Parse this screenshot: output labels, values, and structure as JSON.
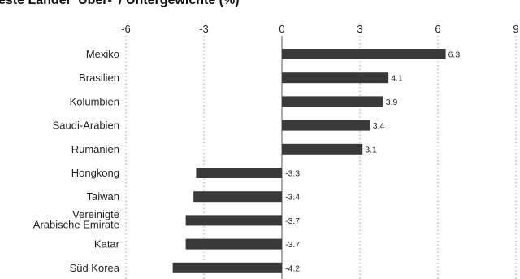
{
  "chart_data": {
    "type": "bar",
    "orientation": "horizontal",
    "title": "este Länder 'Über-' / Untergewichte (%)",
    "xlabel": "",
    "ylabel": "",
    "xlim": [
      -6,
      9
    ],
    "x_ticks": [
      "-6",
      "-3",
      "0",
      "3",
      "6",
      "9"
    ],
    "grid": "vertical dotted",
    "bar_color": "#3a3a3a",
    "categories": [
      "Mexiko",
      "Brasilien",
      "Kolumbien",
      "Saudi-Arabien",
      "Rumänien",
      "Hongkong",
      "Taiwan",
      "Vereinigte\nArabische Emirate",
      "Katar",
      "Süd Korea"
    ],
    "values": [
      6.3,
      4.1,
      3.9,
      3.4,
      3.1,
      -3.3,
      -3.4,
      -3.7,
      -3.7,
      -4.2
    ],
    "value_labels": [
      "6.3",
      "4.1",
      "3.9",
      "3.4",
      "3.1",
      "-3.3",
      "-3.4",
      "-3.7",
      "-3.7",
      "-4.2"
    ]
  }
}
